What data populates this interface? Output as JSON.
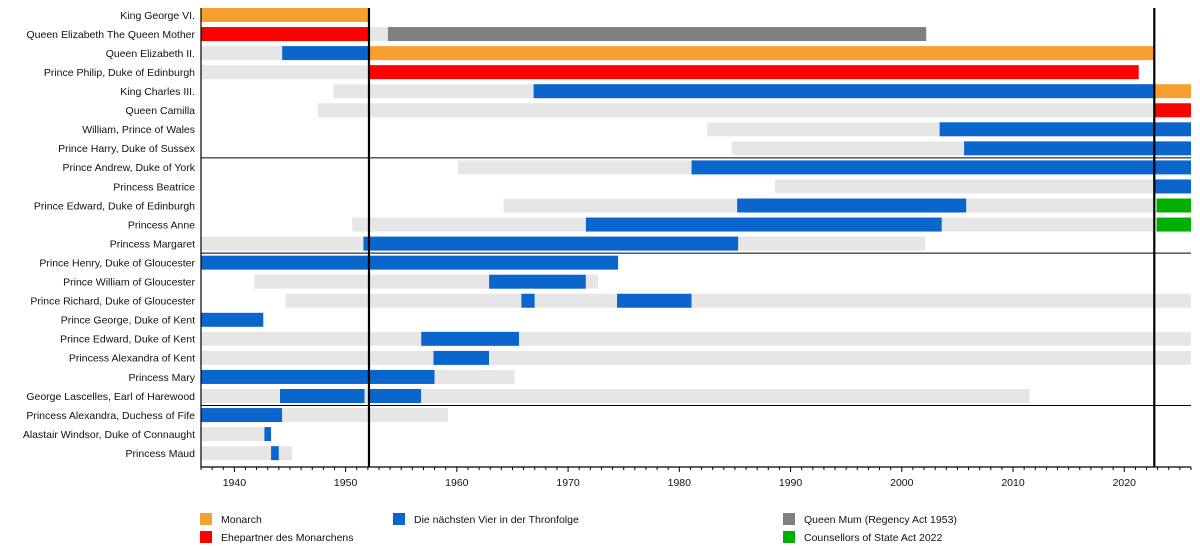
{
  "chart_data": {
    "type": "timeline",
    "title": "",
    "xlabel": "",
    "ylabel": "",
    "xlim": [
      1937,
      2026
    ],
    "x_ticks": [
      1940,
      1950,
      1960,
      1970,
      1980,
      1990,
      2000,
      2010,
      2020
    ],
    "grid": false,
    "legend_position": "bottom",
    "colors": {
      "monarch": "#f7a030",
      "spouse": "#ff0000",
      "next_four": "#0a66cc",
      "regency": "#808080",
      "counsellor": "#00b000",
      "lifetime": "#e6e6e6"
    },
    "legend": [
      {
        "key": "monarch",
        "label": "Monarch"
      },
      {
        "key": "spouse",
        "label": "Ehepartner des Monarchens"
      },
      {
        "key": "next_four",
        "label": "Die nächsten Vier in der Thronfolge"
      },
      {
        "key": "regency",
        "label": "Queen Mum (Regency Act 1953)"
      },
      {
        "key": "counsellor",
        "label": "Counsellors of State Act 2022"
      }
    ],
    "reign_changes": [
      1952.1,
      2022.7
    ],
    "group_separators_after": [
      8,
      13,
      21
    ],
    "rows": [
      {
        "name": "King George VI.",
        "segments": [
          [
            1937.0,
            1952.1,
            "monarch"
          ]
        ]
      },
      {
        "name": "Queen Elizabeth The Queen Mother",
        "segments": [
          [
            1937.0,
            1952.1,
            "spouse"
          ],
          [
            1952.1,
            1953.8,
            "lifetime"
          ],
          [
            1953.8,
            2002.2,
            "regency"
          ]
        ]
      },
      {
        "name": "Queen Elizabeth II.",
        "segments": [
          [
            1937.0,
            1944.3,
            "lifetime"
          ],
          [
            1944.3,
            1952.1,
            "next_four"
          ],
          [
            1952.1,
            2022.7,
            "monarch"
          ]
        ]
      },
      {
        "name": "Prince Philip, Duke of Edinburgh",
        "segments": [
          [
            1937.0,
            1952.1,
            "lifetime"
          ],
          [
            1952.1,
            2021.3,
            "spouse"
          ]
        ]
      },
      {
        "name": "King Charles III.",
        "segments": [
          [
            1948.9,
            1966.9,
            "lifetime"
          ],
          [
            1966.9,
            2022.7,
            "next_four"
          ],
          [
            2022.7,
            2026.0,
            "monarch"
          ]
        ]
      },
      {
        "name": "Queen Camilla",
        "segments": [
          [
            1947.5,
            2022.7,
            "lifetime"
          ],
          [
            2022.7,
            2026.0,
            "spouse"
          ]
        ]
      },
      {
        "name": "William, Prince of Wales",
        "segments": [
          [
            1982.5,
            2003.4,
            "lifetime"
          ],
          [
            2003.4,
            2026.0,
            "next_four"
          ]
        ]
      },
      {
        "name": "Prince Harry, Duke of Sussex",
        "segments": [
          [
            1984.7,
            2005.6,
            "lifetime"
          ],
          [
            2005.6,
            2026.0,
            "next_four"
          ]
        ]
      },
      {
        "name": "Prince Andrew, Duke of York",
        "segments": [
          [
            1960.1,
            1981.1,
            "lifetime"
          ],
          [
            1981.1,
            2026.0,
            "next_four"
          ]
        ]
      },
      {
        "name": "Princess Beatrice",
        "segments": [
          [
            1988.6,
            2022.7,
            "lifetime"
          ],
          [
            2022.7,
            2026.0,
            "next_four"
          ]
        ]
      },
      {
        "name": "Prince Edward, Duke of Edinburgh",
        "segments": [
          [
            1964.2,
            1985.2,
            "lifetime"
          ],
          [
            1985.2,
            2005.8,
            "next_four"
          ],
          [
            2005.8,
            2022.7,
            "lifetime"
          ],
          [
            2022.9,
            2026.0,
            "counsellor"
          ]
        ]
      },
      {
        "name": "Princess Anne",
        "segments": [
          [
            1950.6,
            1971.6,
            "lifetime"
          ],
          [
            1971.6,
            2003.6,
            "next_four"
          ],
          [
            2003.6,
            2022.7,
            "lifetime"
          ],
          [
            2022.9,
            2026.0,
            "counsellor"
          ]
        ]
      },
      {
        "name": "Princess Margaret",
        "segments": [
          [
            1937.0,
            1951.6,
            "lifetime"
          ],
          [
            1951.6,
            1985.3,
            "next_four"
          ],
          [
            1985.3,
            2002.1,
            "lifetime"
          ]
        ]
      },
      {
        "name": "Prince Henry, Duke of Gloucester",
        "segments": [
          [
            1937.0,
            1974.5,
            "next_four"
          ]
        ]
      },
      {
        "name": "Prince William of Gloucester",
        "segments": [
          [
            1941.8,
            1962.9,
            "lifetime"
          ],
          [
            1962.9,
            1971.6,
            "next_four"
          ],
          [
            1971.6,
            1972.7,
            "lifetime"
          ]
        ]
      },
      {
        "name": "Prince Richard, Duke of Gloucester",
        "segments": [
          [
            1944.6,
            1965.8,
            "lifetime"
          ],
          [
            1965.8,
            1967.0,
            "next_four"
          ],
          [
            1967.0,
            1974.4,
            "lifetime"
          ],
          [
            1974.4,
            1981.1,
            "next_four"
          ],
          [
            1981.1,
            2026.0,
            "lifetime"
          ]
        ]
      },
      {
        "name": "Prince George, Duke of Kent",
        "segments": [
          [
            1937.0,
            1942.6,
            "next_four"
          ]
        ]
      },
      {
        "name": "Prince Edward, Duke of Kent",
        "segments": [
          [
            1937.0,
            1956.8,
            "lifetime"
          ],
          [
            1956.8,
            1965.6,
            "next_four"
          ],
          [
            1965.6,
            2026.0,
            "lifetime"
          ]
        ]
      },
      {
        "name": "Princess Alexandra of Kent",
        "segments": [
          [
            1937.0,
            1957.9,
            "lifetime"
          ],
          [
            1957.9,
            1962.9,
            "next_four"
          ],
          [
            1962.9,
            2026.0,
            "lifetime"
          ]
        ]
      },
      {
        "name": "Princess Mary",
        "segments": [
          [
            1937.0,
            1958.0,
            "next_four"
          ],
          [
            1958.0,
            1965.2,
            "lifetime"
          ]
        ]
      },
      {
        "name": "George Lascelles, Earl of Harewood",
        "segments": [
          [
            1937.0,
            1944.1,
            "lifetime"
          ],
          [
            1944.1,
            1951.7,
            "next_four"
          ],
          [
            1951.7,
            1952.1,
            "lifetime"
          ],
          [
            1952.1,
            1956.8,
            "next_four"
          ],
          [
            1956.8,
            2011.5,
            "lifetime"
          ]
        ]
      },
      {
        "name": "Princess Alexandra, Duchess of Fife",
        "segments": [
          [
            1937.0,
            1944.3,
            "next_four"
          ],
          [
            1944.3,
            1959.2,
            "lifetime"
          ]
        ]
      },
      {
        "name": "Alastair Windsor, Duke of Connaught",
        "segments": [
          [
            1937.0,
            1942.7,
            "lifetime"
          ],
          [
            1942.7,
            1943.3,
            "next_four"
          ]
        ]
      },
      {
        "name": "Princess Maud",
        "segments": [
          [
            1937.0,
            1943.3,
            "lifetime"
          ],
          [
            1943.3,
            1944.0,
            "next_four"
          ],
          [
            1944.0,
            1945.2,
            "lifetime"
          ]
        ]
      }
    ]
  }
}
